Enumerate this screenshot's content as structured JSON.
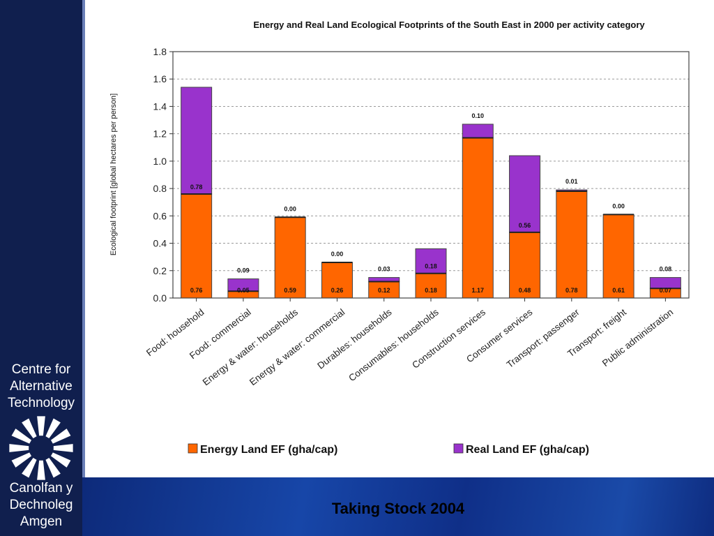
{
  "sidebar": {
    "org_name_en": [
      "Centre for",
      "Alternative",
      "Technology"
    ],
    "org_name_cy": [
      "Canolfan y",
      "Dechnoleg",
      "Amgen"
    ],
    "logo_icon": "cat-sunburst-logo"
  },
  "footer": {
    "text": "Taking Stock 2004"
  },
  "colors": {
    "energy": "#ff6600",
    "real": "#9933cc",
    "sidebar": "#101f4e",
    "footer": "#1746a8"
  },
  "chart_data": {
    "type": "bar",
    "stacked": true,
    "title": "Energy and Real Land Ecological Footprints of the South East in 2000 per activity category",
    "ylabel": "Ecological footprint [global hectares per person]",
    "xlabel": "",
    "ylim": [
      0,
      1.8
    ],
    "yticks": [
      "0.0",
      "0.2",
      "0.4",
      "0.6",
      "0.8",
      "1.0",
      "1.2",
      "1.4",
      "1.6",
      "1.8"
    ],
    "grid": true,
    "legend_position": "bottom",
    "categories": [
      "Food: household",
      "Food: commercial",
      "Energy & water: households",
      "Energy & water: commercial",
      "Durables: households",
      "Consumables: households",
      "Construction services",
      "Consumer services",
      "Transport: passenger",
      "Transport: freight",
      "Public administration"
    ],
    "series": [
      {
        "name": "Energy Land EF (gha/cap)",
        "color": "#ff6600",
        "values": [
          0.76,
          0.05,
          0.59,
          0.26,
          0.12,
          0.18,
          1.17,
          0.48,
          0.78,
          0.61,
          0.07
        ],
        "labels": [
          "0.76",
          "0.05",
          "0.59",
          "0.26",
          "0.12",
          "0.18",
          "1.17",
          "0.48",
          "0.78",
          "0.61",
          "0.07"
        ]
      },
      {
        "name": "Real Land EF (gha/cap)",
        "color": "#9933cc",
        "values": [
          0.78,
          0.09,
          0.0,
          0.0,
          0.03,
          0.18,
          0.1,
          0.56,
          0.01,
          0.0,
          0.08
        ],
        "labels": [
          "0.78",
          "0.09",
          "0.00",
          "0.00",
          "0.03",
          "0.18",
          "0.10",
          "0.56",
          "0.01",
          "0.00",
          "0.08"
        ]
      }
    ]
  }
}
